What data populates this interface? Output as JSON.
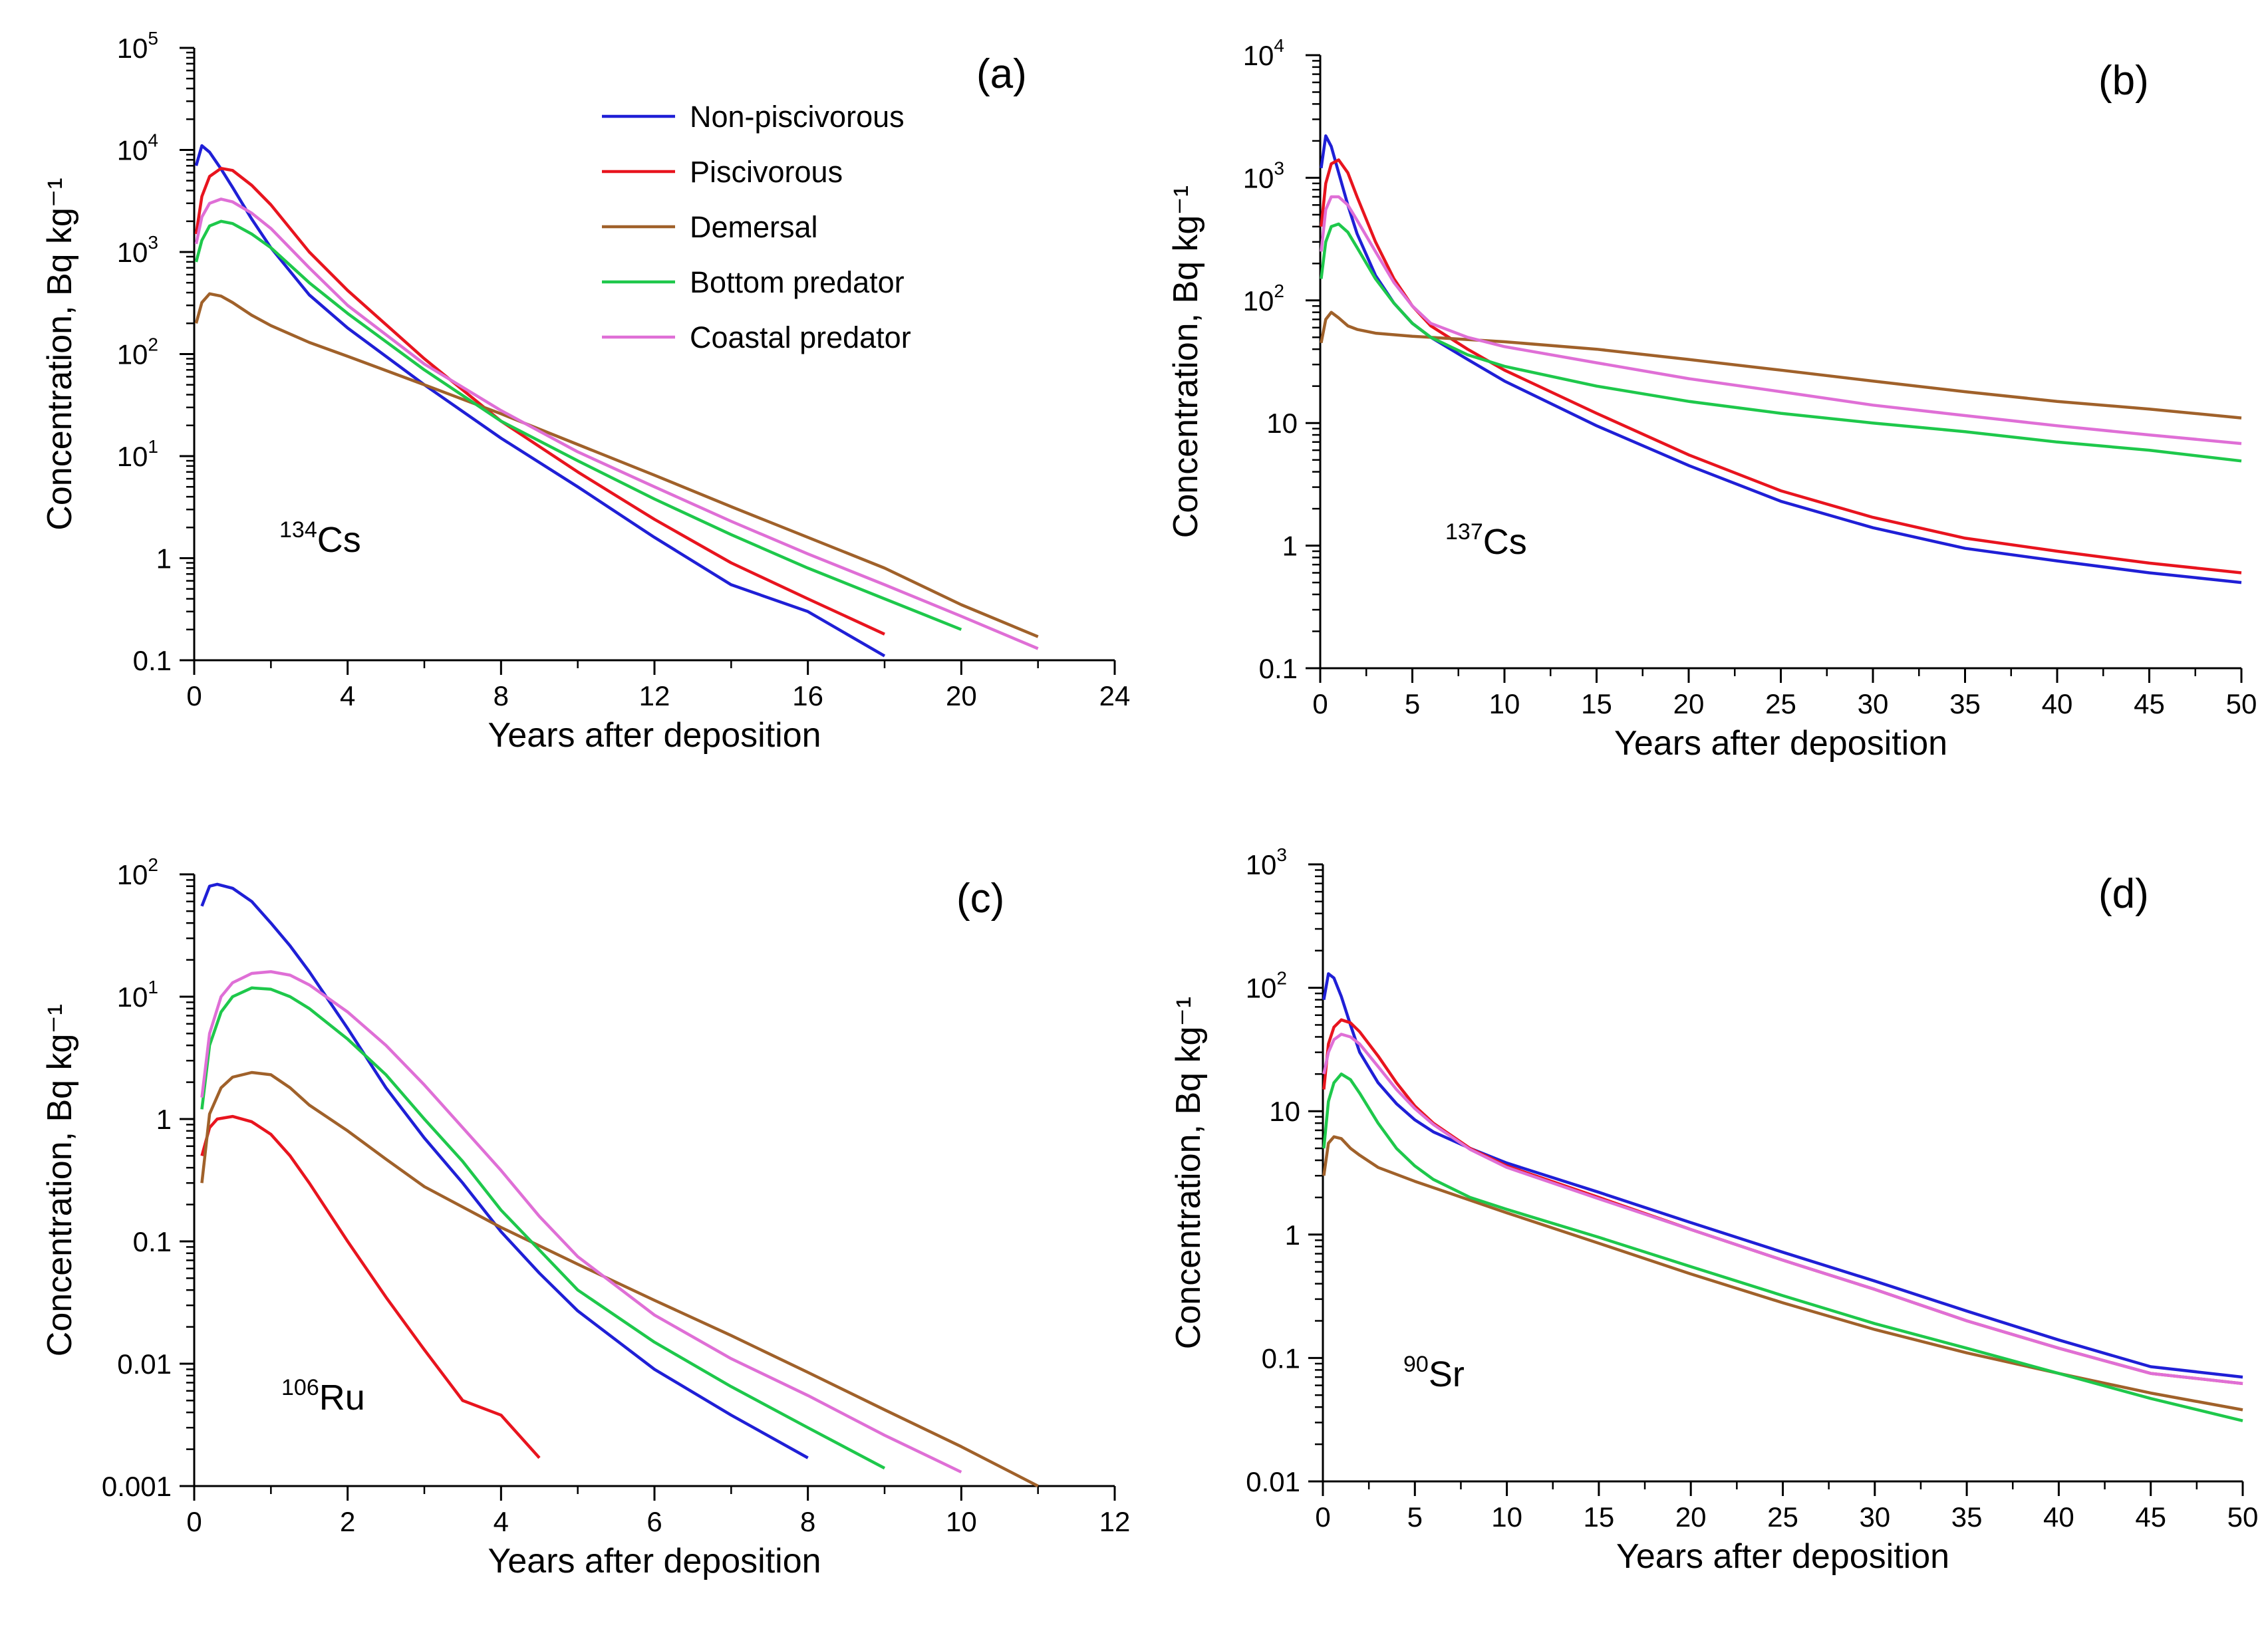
{
  "chart_data": [
    {
      "panel": "(a)",
      "type": "line",
      "isotope": {
        "mass": "134",
        "symbol": "Cs"
      },
      "xlabel": "Years after deposition",
      "ylabel": "Concentration, Bq kg⁻¹",
      "xlim": [
        0,
        24
      ],
      "ylim": [
        0.1,
        100000
      ],
      "yscale": "log",
      "xticks": [
        "0",
        "4",
        "8",
        "12",
        "16",
        "20",
        "24"
      ],
      "yticks": [
        {
          "base": "0.1",
          "exp": ""
        },
        {
          "base": "1",
          "exp": ""
        },
        {
          "base": "10",
          "exp": "1"
        },
        {
          "base": "10",
          "exp": "2"
        },
        {
          "base": "10",
          "exp": "3"
        },
        {
          "base": "10",
          "exp": "4"
        },
        {
          "base": "10",
          "exp": "5"
        }
      ],
      "legend": {
        "placement": "top-center",
        "entries": [
          "Non-piscivorous",
          "Piscivorous",
          "Demersal",
          "Bottom predator",
          "Coastal predator"
        ]
      },
      "series": [
        {
          "name": "Non-piscivorous",
          "color": "#1f1fd6",
          "x": [
            0.05,
            0.2,
            0.4,
            0.7,
            1,
            1.5,
            2,
            3,
            4,
            6,
            8,
            10,
            12,
            14,
            16,
            18
          ],
          "y": [
            7000,
            11000,
            9500,
            6500,
            4300,
            2100,
            1100,
            380,
            180,
            50,
            15,
            5,
            1.6,
            0.55,
            0.3,
            0.11
          ]
        },
        {
          "name": "Piscivorous",
          "color": "#e8141e",
          "x": [
            0.05,
            0.2,
            0.4,
            0.7,
            1,
            1.5,
            2,
            3,
            4,
            6,
            8,
            10,
            12,
            14,
            16,
            18
          ],
          "y": [
            1500,
            3500,
            5500,
            6600,
            6300,
            4500,
            2900,
            1000,
            420,
            90,
            22,
            7,
            2.4,
            0.9,
            0.4,
            0.18
          ]
        },
        {
          "name": "Demersal",
          "color": "#a0612a",
          "x": [
            0.05,
            0.2,
            0.4,
            0.7,
            1,
            1.5,
            2,
            3,
            4,
            6,
            8,
            10,
            12,
            14,
            16,
            18,
            20,
            22
          ],
          "y": [
            200,
            320,
            390,
            370,
            320,
            240,
            190,
            130,
            95,
            50,
            26,
            13,
            6.5,
            3.2,
            1.6,
            0.8,
            0.35,
            0.17
          ]
        },
        {
          "name": "Bottom predator",
          "color": "#1ec84b",
          "x": [
            0.05,
            0.2,
            0.4,
            0.7,
            1,
            1.5,
            2,
            3,
            4,
            6,
            8,
            10,
            12,
            14,
            16,
            18,
            20
          ],
          "y": [
            800,
            1300,
            1800,
            2000,
            1900,
            1500,
            1100,
            500,
            250,
            70,
            22,
            9,
            3.8,
            1.7,
            0.8,
            0.4,
            0.2
          ]
        },
        {
          "name": "Coastal predator",
          "color": "#df6fd6",
          "x": [
            0.05,
            0.2,
            0.4,
            0.7,
            1,
            1.5,
            2,
            3,
            4,
            6,
            8,
            10,
            12,
            14,
            16,
            18,
            20,
            22
          ],
          "y": [
            1200,
            2200,
            3000,
            3300,
            3100,
            2400,
            1700,
            700,
            300,
            80,
            28,
            11,
            5,
            2.3,
            1.1,
            0.55,
            0.27,
            0.13
          ]
        }
      ]
    },
    {
      "panel": "(b)",
      "type": "line",
      "isotope": {
        "mass": "137",
        "symbol": "Cs"
      },
      "xlabel": "Years after deposition",
      "ylabel": "Concentration, Bq kg⁻¹",
      "xlim": [
        0,
        50
      ],
      "ylim": [
        0.1,
        10000
      ],
      "yscale": "log",
      "xticks": [
        "0",
        "5",
        "10",
        "15",
        "20",
        "25",
        "30",
        "35",
        "40",
        "45",
        "50"
      ],
      "yticks": [
        {
          "base": "0.1",
          "exp": ""
        },
        {
          "base": "1",
          "exp": ""
        },
        {
          "base": "10",
          "exp": ""
        },
        {
          "base": "10",
          "exp": "2"
        },
        {
          "base": "10",
          "exp": "3"
        },
        {
          "base": "10",
          "exp": "4"
        }
      ],
      "series": [
        {
          "name": "Non-piscivorous",
          "color": "#1f1fd6",
          "x": [
            0.05,
            0.3,
            0.6,
            1,
            1.5,
            2,
            3,
            4,
            5,
            6,
            8,
            10,
            15,
            20,
            25,
            30,
            35,
            40,
            45,
            50
          ],
          "y": [
            1200,
            2200,
            1800,
            1100,
            600,
            350,
            160,
            95,
            65,
            50,
            33,
            22,
            9.5,
            4.5,
            2.3,
            1.4,
            0.95,
            0.75,
            0.6,
            0.5
          ]
        },
        {
          "name": "Piscivorous",
          "color": "#e8141e",
          "x": [
            0.05,
            0.3,
            0.6,
            1,
            1.5,
            2,
            3,
            4,
            5,
            6,
            8,
            10,
            15,
            20,
            25,
            30,
            35,
            40,
            45,
            50
          ],
          "y": [
            400,
            900,
            1300,
            1400,
            1100,
            700,
            300,
            150,
            90,
            62,
            40,
            27,
            12,
            5.5,
            2.8,
            1.7,
            1.15,
            0.9,
            0.72,
            0.6
          ]
        },
        {
          "name": "Demersal",
          "color": "#a0612a",
          "x": [
            0.05,
            0.3,
            0.6,
            1,
            1.5,
            2,
            3,
            5,
            10,
            15,
            20,
            25,
            30,
            35,
            40,
            45,
            50
          ],
          "y": [
            45,
            70,
            80,
            72,
            62,
            58,
            54,
            51,
            46,
            40,
            33,
            27,
            22,
            18,
            15,
            13,
            11
          ]
        },
        {
          "name": "Bottom predator",
          "color": "#1ec84b",
          "x": [
            0.05,
            0.3,
            0.6,
            1,
            1.5,
            2,
            3,
            4,
            5,
            6,
            8,
            10,
            15,
            20,
            25,
            30,
            35,
            40,
            45,
            50
          ],
          "y": [
            150,
            300,
            400,
            420,
            360,
            270,
            150,
            95,
            65,
            50,
            36,
            29,
            20,
            15,
            12,
            10,
            8.5,
            7,
            6,
            4.9
          ]
        },
        {
          "name": "Coastal predator",
          "color": "#df6fd6",
          "x": [
            0.05,
            0.3,
            0.6,
            1,
            1.5,
            2,
            3,
            4,
            5,
            6,
            8,
            10,
            15,
            20,
            25,
            30,
            35,
            40,
            45,
            50
          ],
          "y": [
            250,
            550,
            700,
            700,
            600,
            450,
            250,
            140,
            90,
            65,
            50,
            42,
            31,
            23,
            18,
            14,
            11.5,
            9.5,
            8,
            6.8
          ]
        }
      ]
    },
    {
      "panel": "(c)",
      "type": "line",
      "isotope": {
        "mass": "106",
        "symbol": "Ru"
      },
      "xlabel": "Years after deposition",
      "ylabel": "Concentration, Bq kg⁻¹",
      "xlim": [
        0,
        12
      ],
      "ylim": [
        0.001,
        100
      ],
      "yscale": "log",
      "xticks": [
        "0",
        "2",
        "4",
        "6",
        "8",
        "10",
        "12"
      ],
      "yticks": [
        {
          "base": "0.001",
          "exp": ""
        },
        {
          "base": "0.01",
          "exp": ""
        },
        {
          "base": "0.1",
          "exp": ""
        },
        {
          "base": "1",
          "exp": ""
        },
        {
          "base": "10",
          "exp": "1"
        },
        {
          "base": "10",
          "exp": "2"
        }
      ],
      "series": [
        {
          "name": "Non-piscivorous",
          "color": "#1f1fd6",
          "x": [
            0.1,
            0.2,
            0.3,
            0.5,
            0.75,
            1,
            1.25,
            1.5,
            2,
            2.5,
            3,
            3.5,
            4,
            4.5,
            5,
            6,
            7,
            8
          ],
          "y": [
            55,
            80,
            83,
            77,
            60,
            40,
            26,
            16,
            5.5,
            1.8,
            0.7,
            0.3,
            0.12,
            0.055,
            0.027,
            0.009,
            0.0038,
            0.0017
          ]
        },
        {
          "name": "Piscivorous",
          "color": "#e8141e",
          "x": [
            0.1,
            0.2,
            0.3,
            0.5,
            0.75,
            1,
            1.25,
            1.5,
            2,
            2.5,
            3,
            3.5,
            4,
            4.5
          ],
          "y": [
            0.5,
            0.85,
            1.0,
            1.05,
            0.95,
            0.75,
            0.5,
            0.3,
            0.1,
            0.035,
            0.013,
            0.005,
            0.0038,
            0.0017
          ]
        },
        {
          "name": "Demersal",
          "color": "#a0612a",
          "x": [
            0.1,
            0.2,
            0.35,
            0.5,
            0.75,
            1,
            1.25,
            1.5,
            2,
            2.5,
            3,
            4,
            5,
            6,
            7,
            8,
            9,
            10,
            11
          ],
          "y": [
            0.3,
            1.1,
            1.8,
            2.2,
            2.4,
            2.3,
            1.8,
            1.3,
            0.8,
            0.47,
            0.28,
            0.13,
            0.065,
            0.033,
            0.017,
            0.0085,
            0.0042,
            0.0021,
            0.001
          ]
        },
        {
          "name": "Bottom predator",
          "color": "#1ec84b",
          "x": [
            0.1,
            0.2,
            0.35,
            0.5,
            0.75,
            1,
            1.25,
            1.5,
            2,
            2.5,
            3,
            3.5,
            4,
            4.5,
            5,
            6,
            7,
            8,
            9
          ],
          "y": [
            1.2,
            4,
            7.5,
            10,
            11.8,
            11.5,
            10,
            8,
            4.5,
            2.3,
            1.0,
            0.45,
            0.18,
            0.085,
            0.04,
            0.015,
            0.0065,
            0.003,
            0.0014
          ]
        },
        {
          "name": "Coastal predator",
          "color": "#df6fd6",
          "x": [
            0.1,
            0.2,
            0.35,
            0.5,
            0.75,
            1,
            1.25,
            1.5,
            2,
            2.5,
            3,
            3.5,
            4,
            4.5,
            5,
            6,
            7,
            8,
            9,
            10
          ],
          "y": [
            1.5,
            5,
            10,
            13,
            15.5,
            16,
            15,
            12.5,
            7.5,
            4,
            1.9,
            0.85,
            0.38,
            0.16,
            0.075,
            0.025,
            0.011,
            0.0055,
            0.0026,
            0.0013
          ]
        }
      ]
    },
    {
      "panel": "(d)",
      "type": "line",
      "isotope": {
        "mass": "90",
        "symbol": "Sr"
      },
      "xlabel": "Years after deposition",
      "ylabel": "Concentration, Bq kg⁻¹",
      "xlim": [
        0,
        50
      ],
      "ylim": [
        0.01,
        1000
      ],
      "yscale": "log",
      "xticks": [
        "0",
        "5",
        "10",
        "15",
        "20",
        "25",
        "30",
        "35",
        "40",
        "45",
        "50"
      ],
      "yticks": [
        {
          "base": "0.01",
          "exp": ""
        },
        {
          "base": "0.1",
          "exp": ""
        },
        {
          "base": "1",
          "exp": ""
        },
        {
          "base": "10",
          "exp": ""
        },
        {
          "base": "10",
          "exp": "2"
        },
        {
          "base": "10",
          "exp": "3"
        }
      ],
      "series": [
        {
          "name": "Non-piscivorous",
          "color": "#1f1fd6",
          "x": [
            0.05,
            0.3,
            0.6,
            1,
            1.5,
            2,
            3,
            4,
            5,
            6,
            8,
            10,
            15,
            20,
            25,
            30,
            35,
            40,
            45,
            50
          ],
          "y": [
            80,
            130,
            120,
            85,
            50,
            30,
            17,
            11.5,
            8.5,
            6.8,
            5,
            3.8,
            2.2,
            1.25,
            0.72,
            0.42,
            0.24,
            0.14,
            0.085,
            0.07
          ]
        },
        {
          "name": "Piscivorous",
          "color": "#e8141e",
          "x": [
            0.05,
            0.3,
            0.6,
            1,
            1.5,
            2,
            3,
            4,
            5,
            6,
            8,
            10,
            15,
            20,
            25,
            30,
            35,
            40,
            45,
            50
          ],
          "y": [
            15,
            35,
            48,
            55,
            52,
            44,
            28,
            17,
            11,
            8,
            5,
            3.6,
            2.0,
            1.1,
            0.62,
            0.36,
            0.2,
            0.12,
            0.075,
            0.062
          ]
        },
        {
          "name": "Demersal",
          "color": "#a0612a",
          "x": [
            0.05,
            0.3,
            0.6,
            1,
            1.5,
            2,
            3,
            5,
            8,
            10,
            15,
            20,
            25,
            30,
            35,
            40,
            45,
            50
          ],
          "y": [
            3,
            5.5,
            6.2,
            6,
            5,
            4.4,
            3.5,
            2.7,
            1.9,
            1.5,
            0.85,
            0.48,
            0.28,
            0.17,
            0.11,
            0.075,
            0.052,
            0.038
          ]
        },
        {
          "name": "Bottom predator",
          "color": "#1ec84b",
          "x": [
            0.05,
            0.3,
            0.6,
            1,
            1.5,
            2,
            3,
            4,
            5,
            6,
            8,
            10,
            15,
            20,
            25,
            30,
            35,
            40,
            45,
            50
          ],
          "y": [
            5,
            12,
            17,
            20,
            18,
            14,
            8,
            5,
            3.6,
            2.8,
            2.0,
            1.6,
            0.95,
            0.55,
            0.32,
            0.19,
            0.12,
            0.075,
            0.047,
            0.031
          ]
        },
        {
          "name": "Coastal predator",
          "color": "#df6fd6",
          "x": [
            0.05,
            0.3,
            0.6,
            1,
            1.5,
            2,
            3,
            4,
            5,
            6,
            8,
            10,
            15,
            20,
            25,
            30,
            35,
            40,
            45,
            50
          ],
          "y": [
            20,
            30,
            38,
            42,
            40,
            35,
            23,
            15,
            10.5,
            7.8,
            4.9,
            3.5,
            1.95,
            1.1,
            0.62,
            0.36,
            0.2,
            0.12,
            0.075,
            0.062
          ]
        }
      ]
    }
  ]
}
